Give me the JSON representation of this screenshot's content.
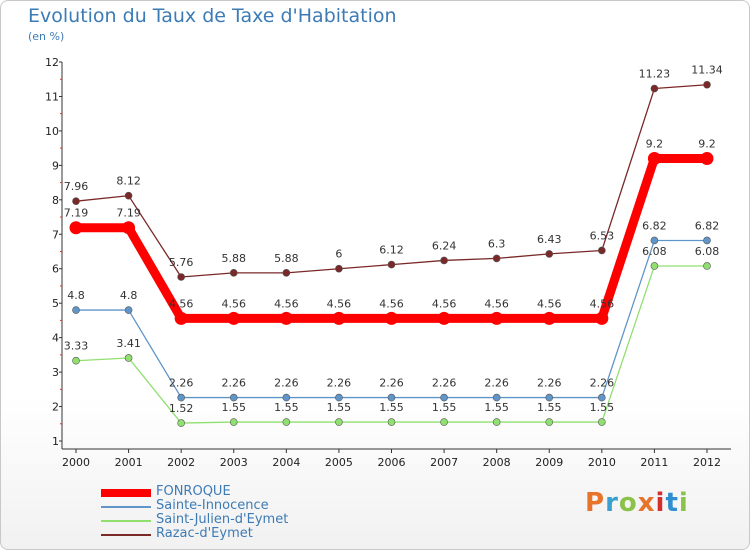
{
  "title": "Evolution du Taux de Taxe d'Habitation",
  "unit": "(en %)",
  "logo": {
    "text": "Proxiti",
    "colors": [
      "#e8732b",
      "#39a0d0",
      "#8bc34a",
      "#e8732b",
      "#d32f2f",
      "#2f8fd0",
      "#8bc34a"
    ]
  },
  "chart_data": {
    "type": "line",
    "title": "Evolution du Taux de Taxe d'Habitation",
    "ylabel": "(en %)",
    "xlabel": "",
    "x": [
      "2000",
      "2001",
      "2002",
      "2003",
      "2004",
      "2005",
      "2006",
      "2007",
      "2008",
      "2009",
      "2010",
      "2011",
      "2012"
    ],
    "ylim": [
      1,
      12
    ],
    "yticks": [
      "1",
      "2",
      "3",
      "4",
      "5",
      "6",
      "7",
      "8",
      "9",
      "10",
      "11",
      "12"
    ],
    "grid": false,
    "legend_position": "bottom-left",
    "series": [
      {
        "name": "FONROQUE",
        "color": "#ff0000",
        "values": [
          7.19,
          7.19,
          4.56,
          4.56,
          4.56,
          4.56,
          4.56,
          4.56,
          4.56,
          4.56,
          4.56,
          9.2,
          9.2
        ],
        "labels": [
          "7.19",
          "7.19",
          "4.56",
          "4.56",
          "4.56",
          "4.56",
          "4.56",
          "4.56",
          "4.56",
          "4.56",
          "4.56",
          "9.2",
          "9.2"
        ]
      },
      {
        "name": "Sainte-Innocence",
        "color": "#5f95c8",
        "values": [
          4.8,
          4.8,
          2.26,
          2.26,
          2.26,
          2.26,
          2.26,
          2.26,
          2.26,
          2.26,
          2.26,
          6.82,
          6.82
        ],
        "labels": [
          "4.8",
          "4.8",
          "2.26",
          "2.26",
          "2.26",
          "2.26",
          "2.26",
          "2.26",
          "2.26",
          "2.26",
          "2.26",
          "6.82",
          "6.82"
        ]
      },
      {
        "name": "Saint-Julien-d'Eymet",
        "color": "#90e070",
        "values": [
          3.33,
          3.41,
          1.52,
          1.55,
          1.55,
          1.55,
          1.55,
          1.55,
          1.55,
          1.55,
          1.55,
          6.08,
          6.08
        ],
        "labels": [
          "3.33",
          "3.41",
          "1.52",
          "1.55",
          "1.55",
          "1.55",
          "1.55",
          "1.55",
          "1.55",
          "1.55",
          "1.55",
          "6.08",
          "6.08"
        ]
      },
      {
        "name": "Razac-d'Eymet",
        "color": "#7a2828",
        "values": [
          7.96,
          8.12,
          5.76,
          5.88,
          5.88,
          6,
          6.12,
          6.24,
          6.3,
          6.43,
          6.53,
          11.23,
          11.34
        ],
        "labels": [
          "7.96",
          "8.12",
          "5.76",
          "5.88",
          "5.88",
          "6",
          "6.12",
          "6.24",
          "6.3",
          "6.43",
          "6.53",
          "11.23",
          "11.34"
        ]
      }
    ]
  }
}
